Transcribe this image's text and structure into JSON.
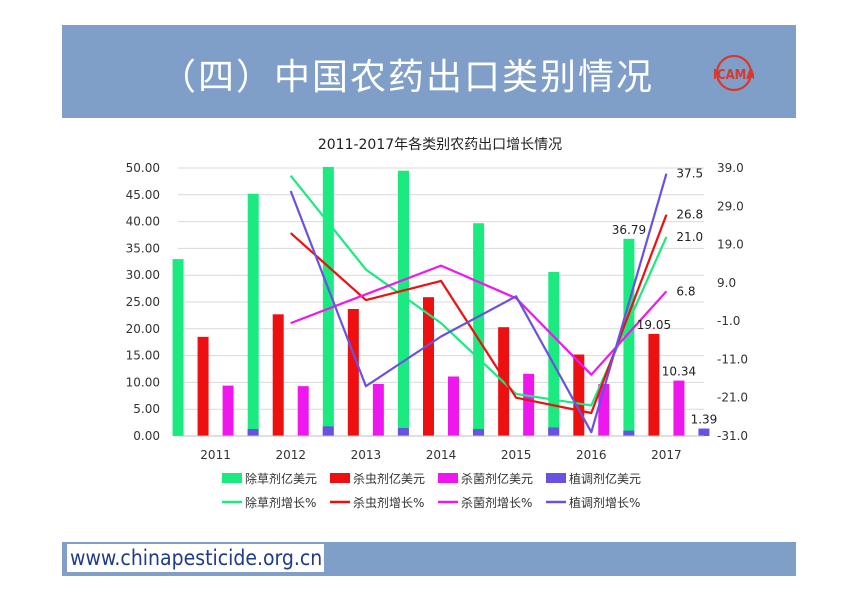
{
  "slide": {
    "title": "（四）中国农药出口类别情况",
    "logo_text": "ICAMA"
  },
  "footer": {
    "url": "www.chinapesticide.org.cn"
  },
  "colors": {
    "header": "#7f9fc9",
    "herbicide": "#1aea80",
    "insecticide": "#ee1010",
    "fungicide": "#ee18ee",
    "regulator": "#6a52e0",
    "logo": "#d9372b"
  },
  "chart_data": {
    "type": "bar",
    "title": "2011-2017年各类别农药出口增长情况",
    "categories": [
      "2011",
      "2012",
      "2013",
      "2014",
      "2015",
      "2016",
      "2017"
    ],
    "y_left": {
      "range": [
        0,
        50
      ],
      "ticks": [
        "0.00",
        "5.00",
        "10.00",
        "15.00",
        "20.00",
        "25.00",
        "30.00",
        "35.00",
        "40.00",
        "45.00",
        "50.00"
      ]
    },
    "y_right": {
      "range": [
        -31,
        39
      ],
      "ticks": [
        "-31.0",
        "-21.0",
        "-11.0",
        "-1.0",
        "9.0",
        "19.0",
        "29.0",
        "39.0"
      ]
    },
    "bar_series": [
      {
        "name": "除草剂亿美元",
        "color_key": "herbicide",
        "values": [
          33.0,
          45.2,
          50.2,
          49.5,
          39.7,
          30.6,
          36.79
        ]
      },
      {
        "name": "杀虫剂亿美元",
        "color_key": "insecticide",
        "values": [
          18.5,
          22.7,
          23.7,
          25.9,
          20.3,
          15.2,
          19.05
        ]
      },
      {
        "name": "杀菌剂亿美元",
        "color_key": "fungicide",
        "values": [
          9.4,
          9.3,
          9.7,
          11.1,
          11.6,
          9.7,
          10.34
        ]
      },
      {
        "name": "植调剂亿美元",
        "color_key": "regulator",
        "values": [
          1.3,
          1.8,
          1.5,
          1.3,
          1.6,
          1.0,
          1.39
        ]
      }
    ],
    "bar_labels": [
      {
        "series": 0,
        "index": 6,
        "text": "36.79"
      },
      {
        "series": 1,
        "index": 6,
        "text": "19.05"
      },
      {
        "series": 2,
        "index": 6,
        "text": "10.34"
      },
      {
        "series": 3,
        "index": 6,
        "text": "1.39"
      }
    ],
    "line_series": [
      {
        "name": "除草剂增长%",
        "color_key": "herbicide",
        "values": [
          null,
          37.0,
          12.5,
          -1.5,
          -20.0,
          -23.0,
          21.0
        ]
      },
      {
        "name": "杀虫剂增长%",
        "color_key": "insecticide",
        "values": [
          null,
          22.0,
          4.5,
          9.5,
          -21.0,
          -25.0,
          26.8
        ]
      },
      {
        "name": "杀菌剂增长%",
        "color_key": "fungicide",
        "values": [
          null,
          -1.5,
          6.0,
          13.5,
          5.0,
          -15.0,
          6.8
        ]
      },
      {
        "name": "植调剂增长%",
        "color_key": "regulator",
        "values": [
          null,
          33.0,
          -18.0,
          -5.0,
          5.5,
          -30.0,
          37.5
        ]
      }
    ],
    "line_labels": [
      {
        "series": 3,
        "index": 6,
        "text": "37.5"
      },
      {
        "series": 1,
        "index": 6,
        "text": "26.8"
      },
      {
        "series": 0,
        "index": 6,
        "text": "21.0"
      },
      {
        "series": 2,
        "index": 6,
        "text": "6.8"
      }
    ],
    "legend": {
      "position": "bottom"
    },
    "grid": true
  }
}
